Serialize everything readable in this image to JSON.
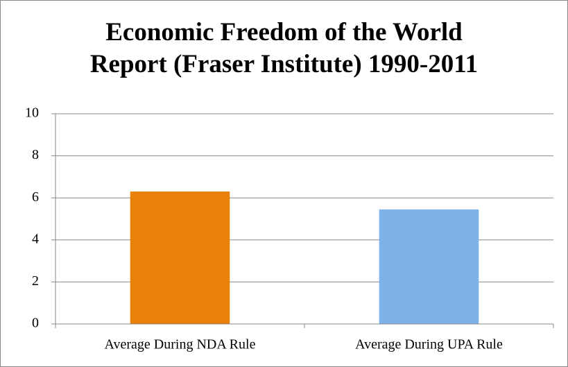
{
  "chart_data": {
    "type": "bar",
    "title": "Economic Freedom of the World\nReport (Fraser Institute) 1990-2011",
    "categories": [
      "Average During NDA Rule",
      "Average During UPA Rule"
    ],
    "values": [
      6.3,
      5.45
    ],
    "colors": [
      "#e8800a",
      "#7eb3ea"
    ],
    "ylim": [
      0,
      10
    ],
    "yticks": [
      0,
      2,
      4,
      6,
      8,
      10
    ],
    "grid": true
  }
}
